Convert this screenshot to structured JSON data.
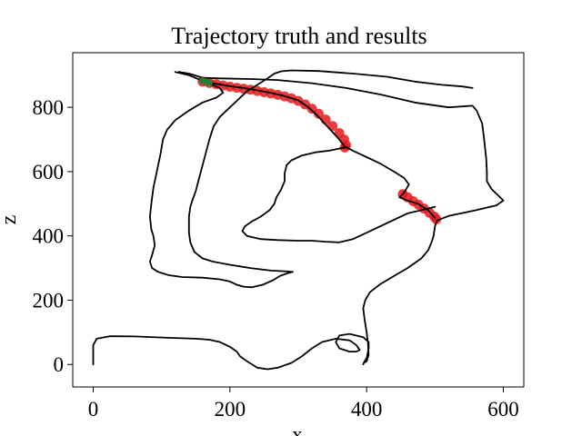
{
  "chart_data": {
    "type": "line",
    "title": "Trajectory truth and results",
    "xlabel": "x",
    "ylabel": "z",
    "xlim": [
      -30,
      630
    ],
    "ylim": [
      -70,
      970
    ],
    "xticks": [
      0,
      200,
      400,
      600
    ],
    "yticks": [
      0,
      200,
      400,
      600,
      800
    ],
    "xtick_labels": [
      "0",
      "200",
      "400",
      "600"
    ],
    "ytick_labels": [
      "0",
      "200",
      "400",
      "600",
      "800"
    ],
    "grid": false,
    "colors": {
      "truth": "#000000",
      "result": "#e41a1c",
      "start": "#2e7d32"
    },
    "series": [
      {
        "role": "truth",
        "style": "line",
        "points": [
          [
            0,
            0
          ],
          [
            0,
            60
          ],
          [
            5,
            80
          ],
          [
            25,
            88
          ],
          [
            60,
            87
          ],
          [
            110,
            83
          ],
          [
            150,
            80
          ],
          [
            170,
            77
          ],
          [
            185,
            70
          ],
          [
            200,
            55
          ],
          [
            210,
            40
          ],
          [
            215,
            25
          ],
          [
            225,
            10
          ],
          [
            240,
            -10
          ],
          [
            255,
            -15
          ],
          [
            270,
            -10
          ],
          [
            290,
            5
          ],
          [
            305,
            25
          ],
          [
            320,
            50
          ],
          [
            335,
            70
          ],
          [
            355,
            80
          ],
          [
            375,
            75
          ],
          [
            385,
            60
          ],
          [
            390,
            45
          ],
          [
            385,
            40
          ],
          [
            375,
            40
          ],
          [
            360,
            50
          ],
          [
            355,
            70
          ],
          [
            360,
            90
          ],
          [
            375,
            95
          ],
          [
            395,
            85
          ],
          [
            403,
            70
          ],
          [
            403,
            50
          ],
          [
            400,
            20
          ],
          [
            397,
            10
          ],
          [
            395,
            0
          ],
          [
            396,
            5
          ],
          [
            400,
            10
          ],
          [
            403,
            30
          ],
          [
            402,
            65
          ],
          [
            400,
            100
          ],
          [
            397,
            140
          ],
          [
            395,
            175
          ],
          [
            398,
            200
          ],
          [
            405,
            225
          ],
          [
            420,
            250
          ],
          [
            440,
            275
          ],
          [
            460,
            300
          ],
          [
            480,
            330
          ],
          [
            490,
            355
          ],
          [
            495,
            380
          ],
          [
            498,
            400
          ],
          [
            500,
            430
          ],
          [
            503,
            448
          ],
          [
            520,
            462
          ],
          [
            560,
            480
          ],
          [
            590,
            495
          ],
          [
            600,
            510
          ],
          [
            593,
            525
          ],
          [
            583,
            545
          ],
          [
            576,
            570
          ],
          [
            576,
            600
          ],
          [
            575,
            640
          ],
          [
            572,
            700
          ],
          [
            569,
            750
          ],
          [
            561,
            790
          ],
          [
            555,
            805
          ],
          [
            520,
            800
          ],
          [
            470,
            815
          ],
          [
            420,
            840
          ],
          [
            370,
            860
          ],
          [
            320,
            875
          ],
          [
            270,
            885
          ],
          [
            230,
            888
          ],
          [
            185,
            890
          ],
          [
            160,
            892
          ],
          [
            140,
            905
          ],
          [
            125,
            910
          ]
        ]
      },
      {
        "role": "truth",
        "style": "line",
        "points": [
          [
            120,
            910
          ],
          [
            140,
            900
          ],
          [
            160,
            882
          ],
          [
            180,
            873
          ],
          [
            200,
            866
          ],
          [
            220,
            860
          ],
          [
            240,
            853
          ],
          [
            260,
            845
          ],
          [
            280,
            835
          ],
          [
            300,
            822
          ],
          [
            315,
            800
          ],
          [
            330,
            770
          ],
          [
            345,
            735
          ],
          [
            360,
            700
          ],
          [
            368,
            678
          ],
          [
            380,
            665
          ],
          [
            400,
            645
          ],
          [
            420,
            625
          ],
          [
            440,
            600
          ],
          [
            455,
            580
          ],
          [
            462,
            560
          ],
          [
            455,
            535
          ],
          [
            448,
            520
          ],
          [
            460,
            510
          ],
          [
            475,
            500
          ],
          [
            490,
            480
          ],
          [
            500,
            456
          ]
        ]
      },
      {
        "role": "truth",
        "style": "line",
        "points": [
          [
            160,
            880
          ],
          [
            175,
            870
          ],
          [
            185,
            860
          ],
          [
            190,
            845
          ],
          [
            180,
            830
          ],
          [
            160,
            815
          ],
          [
            140,
            790
          ],
          [
            120,
            760
          ],
          [
            108,
            730
          ],
          [
            102,
            700
          ],
          [
            98,
            650
          ],
          [
            95,
            620
          ],
          [
            92,
            590
          ],
          [
            88,
            550
          ],
          [
            85,
            500
          ],
          [
            83,
            460
          ],
          [
            85,
            420
          ],
          [
            88,
            400
          ],
          [
            90,
            370
          ],
          [
            86,
            340
          ],
          [
            83,
            320
          ],
          [
            86,
            300
          ],
          [
            95,
            288
          ],
          [
            110,
            278
          ],
          [
            130,
            272
          ],
          [
            160,
            270
          ],
          [
            185,
            265
          ],
          [
            200,
            258
          ],
          [
            210,
            248
          ],
          [
            220,
            242
          ],
          [
            232,
            240
          ],
          [
            248,
            248
          ],
          [
            263,
            262
          ],
          [
            273,
            275
          ],
          [
            283,
            283
          ],
          [
            292,
            288
          ],
          [
            280,
            290
          ],
          [
            260,
            292
          ],
          [
            230,
            300
          ],
          [
            200,
            310
          ],
          [
            175,
            320
          ],
          [
            160,
            330
          ],
          [
            148,
            350
          ],
          [
            142,
            380
          ],
          [
            140,
            410
          ],
          [
            140,
            430
          ],
          [
            140,
            460
          ],
          [
            142,
            490
          ],
          [
            145,
            510
          ],
          [
            150,
            540
          ],
          [
            155,
            580
          ],
          [
            160,
            620
          ],
          [
            165,
            660
          ],
          [
            170,
            700
          ],
          [
            176,
            740
          ],
          [
            185,
            770
          ],
          [
            195,
            790
          ],
          [
            205,
            810
          ],
          [
            215,
            830
          ],
          [
            225,
            850
          ],
          [
            240,
            870
          ],
          [
            255,
            890
          ],
          [
            265,
            905
          ],
          [
            275,
            912
          ],
          [
            290,
            915
          ],
          [
            330,
            913
          ],
          [
            380,
            905
          ],
          [
            430,
            895
          ],
          [
            470,
            880
          ],
          [
            510,
            870
          ],
          [
            540,
            865
          ],
          [
            555,
            860
          ]
        ]
      },
      {
        "role": "truth",
        "style": "line",
        "points": [
          [
            368,
            675
          ],
          [
            345,
            665
          ],
          [
            325,
            660
          ],
          [
            305,
            650
          ],
          [
            290,
            635
          ],
          [
            283,
            620
          ],
          [
            280,
            595
          ],
          [
            280,
            570
          ],
          [
            275,
            545
          ],
          [
            268,
            520
          ],
          [
            265,
            500
          ],
          [
            258,
            480
          ],
          [
            245,
            460
          ],
          [
            232,
            445
          ],
          [
            222,
            430
          ],
          [
            218,
            415
          ],
          [
            225,
            400
          ],
          [
            245,
            390
          ],
          [
            270,
            387
          ],
          [
            300,
            385
          ],
          [
            320,
            385
          ],
          [
            340,
            382
          ],
          [
            360,
            380
          ],
          [
            380,
            390
          ],
          [
            400,
            410
          ],
          [
            420,
            430
          ],
          [
            440,
            450
          ],
          [
            460,
            470
          ],
          [
            480,
            480
          ],
          [
            500,
            490
          ]
        ]
      },
      {
        "role": "result",
        "style": "markers",
        "points": [
          [
            160,
            880
          ],
          [
            170,
            876
          ],
          [
            180,
            872
          ],
          [
            190,
            868
          ],
          [
            200,
            864
          ],
          [
            210,
            861
          ],
          [
            220,
            858
          ],
          [
            230,
            855
          ],
          [
            240,
            851
          ],
          [
            250,
            847
          ],
          [
            260,
            843
          ],
          [
            270,
            839
          ],
          [
            280,
            834
          ],
          [
            290,
            828
          ],
          [
            300,
            820
          ],
          [
            310,
            809
          ],
          [
            320,
            796
          ],
          [
            330,
            780
          ],
          [
            340,
            762
          ],
          [
            350,
            742
          ],
          [
            360,
            720
          ],
          [
            367,
            700
          ],
          [
            370,
            682
          ],
          [
            368,
            675
          ]
        ]
      },
      {
        "role": "result",
        "style": "markers",
        "points": [
          [
            453,
            530
          ],
          [
            460,
            520
          ],
          [
            468,
            508
          ],
          [
            476,
            497
          ],
          [
            484,
            485
          ],
          [
            492,
            472
          ],
          [
            499,
            460
          ],
          [
            502,
            452
          ]
        ]
      },
      {
        "role": "start",
        "style": "markers",
        "points": [
          [
            160,
            882
          ],
          [
            165,
            879
          ],
          [
            170,
            877
          ]
        ]
      }
    ]
  }
}
